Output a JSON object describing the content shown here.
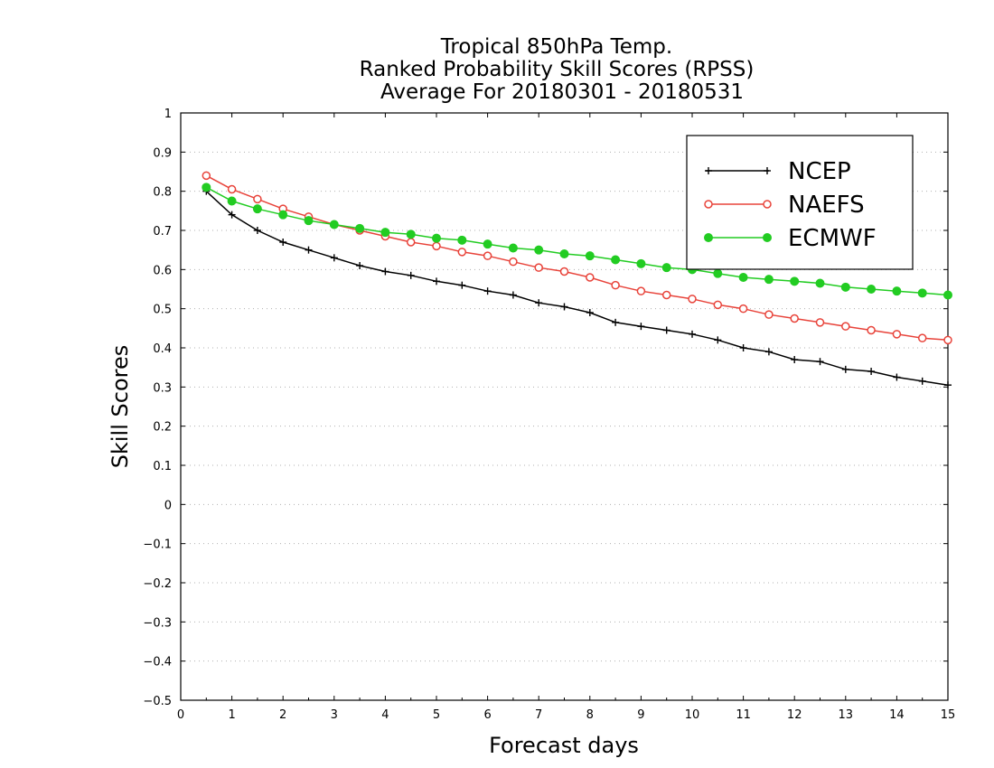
{
  "chart_data": {
    "type": "line",
    "title": [
      "Tropical 850hPa Temp.",
      "Ranked Probability Skill Scores (RPSS)",
      "Average For 20180301 - 20180531"
    ],
    "xlabel": "Forecast days",
    "ylabel": "Skill Scores",
    "xlim": [
      0,
      15
    ],
    "ylim": [
      -0.5,
      1
    ],
    "xticks": [
      "0",
      "1",
      "2",
      "3",
      "4",
      "5",
      "6",
      "7",
      "8",
      "9",
      "10",
      "11",
      "12",
      "13",
      "14",
      "15"
    ],
    "yticks": [
      "−0.5",
      "−0.4",
      "−0.3",
      "−0.2",
      "−0.1",
      "0",
      "0.1",
      "0.2",
      "0.3",
      "0.4",
      "0.5",
      "0.6",
      "0.7",
      "0.8",
      "0.9",
      "1"
    ],
    "grid": true,
    "legend_position": "top-right",
    "x": [
      0.5,
      1,
      1.5,
      2,
      2.5,
      3,
      3.5,
      4,
      4.5,
      5,
      5.5,
      6,
      6.5,
      7,
      7.5,
      8,
      8.5,
      9,
      9.5,
      10,
      10.5,
      11,
      11.5,
      12,
      12.5,
      13,
      13.5,
      14,
      14.5,
      15
    ],
    "series": [
      {
        "name": "NCEP",
        "color": "#000000",
        "marker": "plus",
        "values": [
          0.8,
          0.74,
          0.7,
          0.67,
          0.65,
          0.63,
          0.61,
          0.595,
          0.585,
          0.57,
          0.56,
          0.545,
          0.535,
          0.515,
          0.505,
          0.49,
          0.465,
          0.455,
          0.445,
          0.435,
          0.42,
          0.4,
          0.39,
          0.37,
          0.365,
          0.345,
          0.34,
          0.325,
          0.315,
          0.305
        ]
      },
      {
        "name": "NAEFS",
        "color": "#e8433a",
        "marker": "open-circle",
        "values": [
          0.84,
          0.805,
          0.78,
          0.755,
          0.735,
          0.715,
          0.7,
          0.685,
          0.67,
          0.66,
          0.645,
          0.635,
          0.62,
          0.605,
          0.595,
          0.58,
          0.56,
          0.545,
          0.535,
          0.525,
          0.51,
          0.5,
          0.485,
          0.475,
          0.465,
          0.455,
          0.445,
          0.435,
          0.425,
          0.42
        ]
      },
      {
        "name": "ECMWF",
        "color": "#22cc22",
        "marker": "filled-circle",
        "values": [
          0.81,
          0.775,
          0.755,
          0.74,
          0.725,
          0.715,
          0.705,
          0.695,
          0.69,
          0.68,
          0.675,
          0.665,
          0.655,
          0.65,
          0.64,
          0.635,
          0.625,
          0.615,
          0.605,
          0.6,
          0.59,
          0.58,
          0.575,
          0.57,
          0.565,
          0.555,
          0.55,
          0.545,
          0.54,
          0.535
        ]
      }
    ]
  }
}
